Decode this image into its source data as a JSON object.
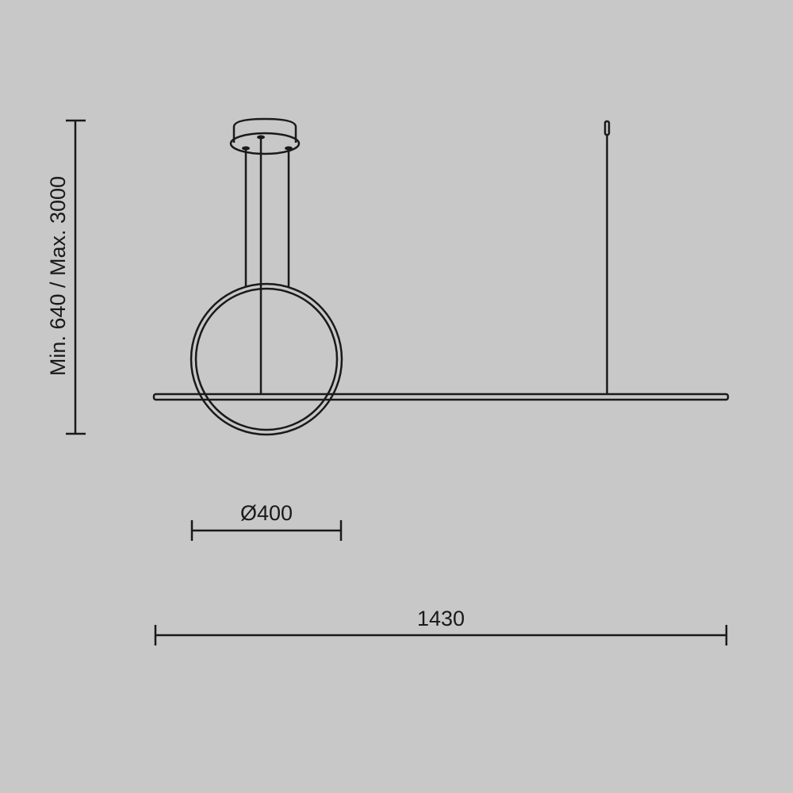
{
  "dimensions": {
    "height_label": "Min. 640 / Max. 3000",
    "diameter_label": "Ø400",
    "width_label": "1430"
  },
  "colors": {
    "background": "#c8c8c8",
    "line": "#1a1a1a"
  }
}
